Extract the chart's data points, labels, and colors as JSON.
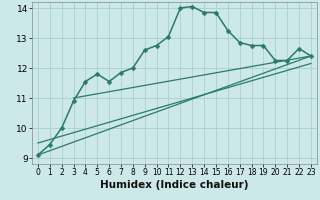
{
  "xlabel": "Humidex (Indice chaleur)",
  "bg_color": "#cce8e8",
  "grid_color": "#aad0d0",
  "line_color": "#2a7a6a",
  "xlim": [
    -0.5,
    23.5
  ],
  "ylim": [
    8.8,
    14.2
  ],
  "yticks": [
    9,
    10,
    11,
    12,
    13,
    14
  ],
  "xticks": [
    0,
    1,
    2,
    3,
    4,
    5,
    6,
    7,
    8,
    9,
    10,
    11,
    12,
    13,
    14,
    15,
    16,
    17,
    18,
    19,
    20,
    21,
    22,
    23
  ],
  "series": [
    {
      "x": [
        0,
        1,
        2,
        3,
        4,
        5,
        6,
        7,
        8,
        9,
        10,
        11,
        12,
        13,
        14,
        15,
        16,
        17,
        18,
        19,
        20,
        21,
        22,
        23
      ],
      "y": [
        9.1,
        9.45,
        10.0,
        10.9,
        11.55,
        11.8,
        11.55,
        11.85,
        12.0,
        12.6,
        12.75,
        13.05,
        14.0,
        14.05,
        13.85,
        13.85,
        13.25,
        12.85,
        12.75,
        12.75,
        12.25,
        12.25,
        12.65,
        12.4
      ],
      "marker": "D",
      "markersize": 2.5,
      "linewidth": 1.1,
      "zorder": 3
    },
    {
      "x": [
        0,
        23
      ],
      "y": [
        9.1,
        12.4
      ],
      "marker": null,
      "linewidth": 0.9,
      "zorder": 2
    },
    {
      "x": [
        0,
        23
      ],
      "y": [
        9.5,
        12.15
      ],
      "marker": null,
      "linewidth": 0.9,
      "zorder": 2
    },
    {
      "x": [
        3,
        23
      ],
      "y": [
        11.0,
        12.4
      ],
      "marker": null,
      "linewidth": 0.9,
      "zorder": 2
    }
  ],
  "xlabel_fontsize": 7.5,
  "tick_fontsize": 6.5
}
